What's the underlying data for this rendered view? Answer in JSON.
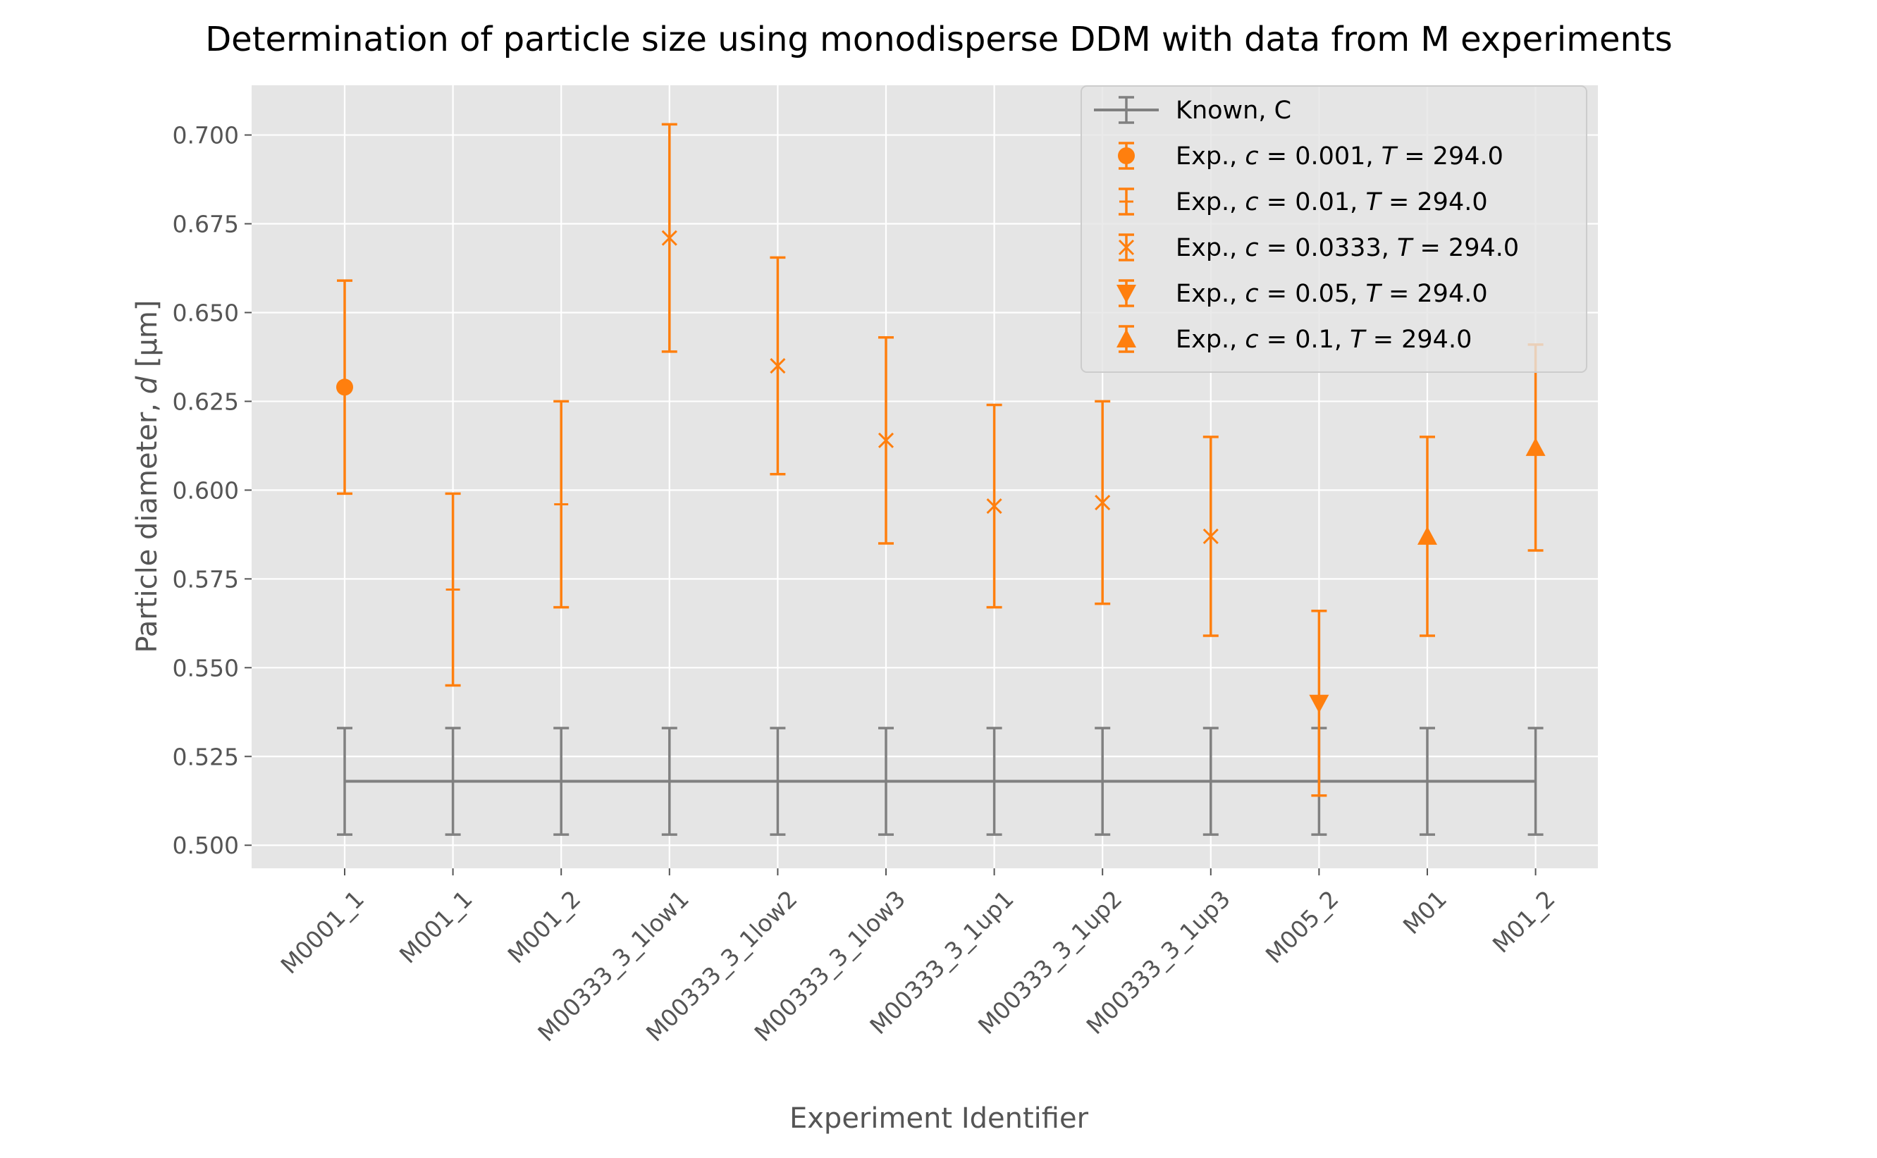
{
  "chart_data": {
    "type": "scatter",
    "title": "Determination of particle size using monodisperse DDM with data from M experiments",
    "xlabel": "Experiment Identifier",
    "ylabel": "Particle diameter, d [µm]",
    "ylabel_parts": [
      "Particle diameter, ",
      "d",
      " [µm]"
    ],
    "categories": [
      "M0001_1",
      "M001_1",
      "M001_2",
      "M00333_3_1low1",
      "M00333_3_1low2",
      "M00333_3_1low3",
      "M00333_3_1up1",
      "M00333_3_1up2",
      "M00333_3_1up3",
      "M005_2",
      "M01",
      "M01_2"
    ],
    "ylim": [
      0.4935,
      0.714
    ],
    "yticks": [
      "0.500",
      "0.525",
      "0.550",
      "0.575",
      "0.600",
      "0.625",
      "0.650",
      "0.675",
      "0.700"
    ],
    "grid": true,
    "background": "#e5e5e5",
    "legend_position": "top-right",
    "known": {
      "name": "Known, C",
      "color": "#808080",
      "value": 0.518,
      "err": 0.015
    },
    "series": [
      {
        "name": "Exp., c = 0.001, T = 294.0",
        "name_parts": {
          "pre": "Exp., ",
          "c": "0.001",
          "T": "294.0"
        },
        "marker": "circle",
        "color": "#ff7f0e",
        "points": [
          {
            "category": "M0001_1",
            "y": 0.629,
            "err": 0.03
          }
        ]
      },
      {
        "name": "Exp., c = 0.01, T = 294.0",
        "name_parts": {
          "pre": "Exp., ",
          "c": "0.01",
          "T": "294.0"
        },
        "marker": "plus",
        "color": "#ff7f0e",
        "points": [
          {
            "category": "M001_1",
            "y": 0.572,
            "err": 0.027
          },
          {
            "category": "M001_2",
            "y": 0.596,
            "err": 0.029
          }
        ]
      },
      {
        "name": "Exp., c = 0.0333, T = 294.0",
        "name_parts": {
          "pre": "Exp., ",
          "c": "0.0333",
          "T": "294.0"
        },
        "marker": "x",
        "color": "#ff7f0e",
        "points": [
          {
            "category": "M00333_3_1low1",
            "y": 0.671,
            "err": 0.032
          },
          {
            "category": "M00333_3_1low2",
            "y": 0.635,
            "err": 0.0305
          },
          {
            "category": "M00333_3_1low3",
            "y": 0.614,
            "err": 0.029
          },
          {
            "category": "M00333_3_1up1",
            "y": 0.5955,
            "err": 0.0285
          },
          {
            "category": "M00333_3_1up2",
            "y": 0.5965,
            "err": 0.0285
          },
          {
            "category": "M00333_3_1up3",
            "y": 0.587,
            "err": 0.028
          }
        ]
      },
      {
        "name": "Exp., c = 0.05, T = 294.0",
        "name_parts": {
          "pre": "Exp., ",
          "c": "0.05",
          "T": "294.0"
        },
        "marker": "triangle-down",
        "color": "#ff7f0e",
        "points": [
          {
            "category": "M005_2",
            "y": 0.54,
            "err": 0.026
          }
        ]
      },
      {
        "name": "Exp., c = 0.1, T = 294.0",
        "name_parts": {
          "pre": "Exp., ",
          "c": "0.1",
          "T": "294.0"
        },
        "marker": "triangle-up",
        "color": "#ff7f0e",
        "points": [
          {
            "category": "M01",
            "y": 0.587,
            "err": 0.028
          },
          {
            "category": "M01_2",
            "y": 0.612,
            "err": 0.029
          }
        ]
      }
    ]
  }
}
